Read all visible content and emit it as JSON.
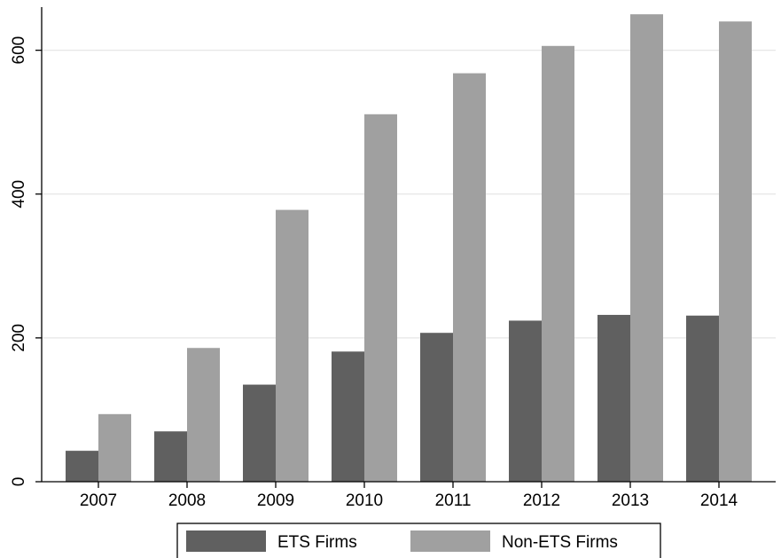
{
  "chart_data": {
    "type": "bar",
    "categories": [
      "2007",
      "2008",
      "2009",
      "2010",
      "2011",
      "2012",
      "2013",
      "2014"
    ],
    "series": [
      {
        "name": "ETS Firms",
        "color": "#606060",
        "values": [
          43,
          70,
          135,
          181,
          207,
          224,
          232,
          231
        ]
      },
      {
        "name": "Non-ETS Firms",
        "color": "#a0a0a0",
        "values": [
          94,
          186,
          378,
          511,
          568,
          606,
          650,
          640
        ]
      }
    ],
    "title": "",
    "xlabel": "",
    "ylabel": "",
    "ylim": [
      0,
      660
    ],
    "yticks": [
      0,
      200,
      400,
      600
    ],
    "grid": true,
    "legend_position": "bottom"
  }
}
